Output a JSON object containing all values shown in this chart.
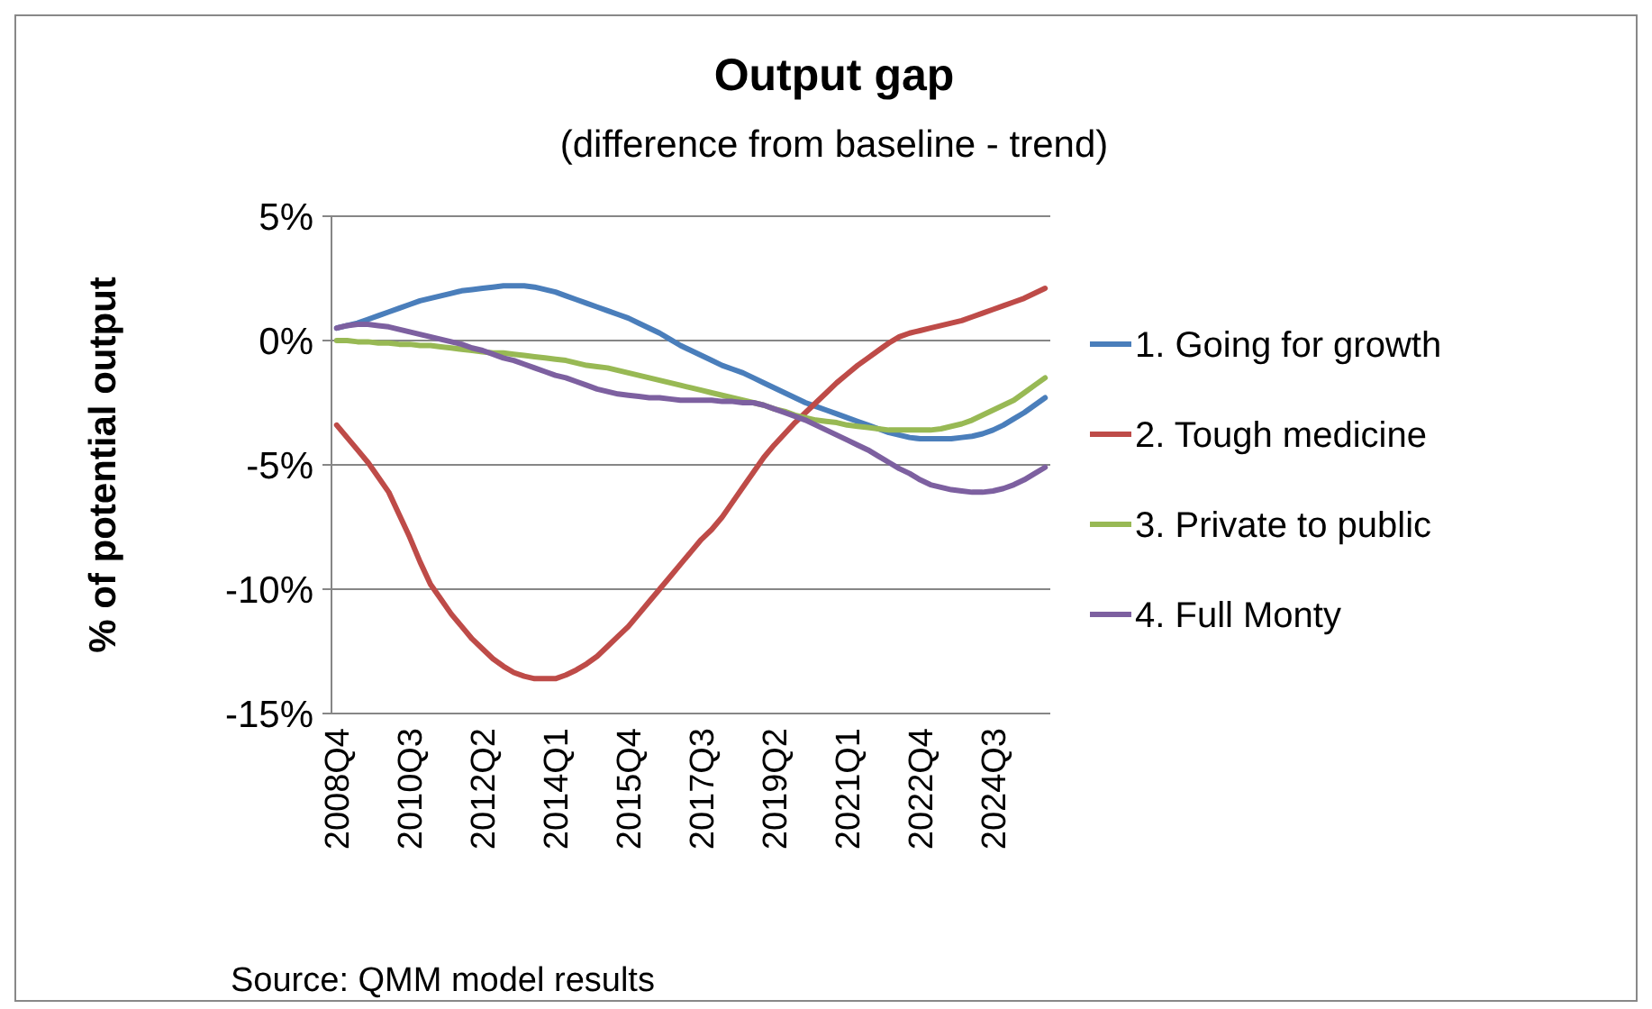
{
  "chart_data": {
    "type": "line",
    "title": "Output gap",
    "subtitle": "(difference from baseline - trend)",
    "ylabel": "% of potential output",
    "annotations": [
      "Source: QMM model results"
    ],
    "categories": [
      "2008Q4",
      null,
      null,
      null,
      null,
      null,
      null,
      "2010Q3",
      null,
      null,
      null,
      null,
      null,
      null,
      "2012Q2",
      null,
      null,
      null,
      null,
      null,
      null,
      "2014Q1",
      null,
      null,
      null,
      null,
      null,
      null,
      "2015Q4",
      null,
      null,
      null,
      null,
      null,
      null,
      "2017Q3",
      null,
      null,
      null,
      null,
      null,
      null,
      "2019Q2",
      null,
      null,
      null,
      null,
      null,
      null,
      "2021Q1",
      null,
      null,
      null,
      null,
      null,
      null,
      "2022Q4",
      null,
      null,
      null,
      null,
      null,
      null,
      "2024Q3",
      null,
      null,
      null,
      null,
      null
    ],
    "ylim": [
      -15,
      5
    ],
    "yticks": [
      {
        "value": 5,
        "label": "5%"
      },
      {
        "value": 0,
        "label": "0%"
      },
      {
        "value": -5,
        "label": "-5%"
      },
      {
        "value": -10,
        "label": "-10%"
      },
      {
        "value": -15,
        "label": "-15%"
      }
    ],
    "grid": "y",
    "legend": "right",
    "marker": "none",
    "series": [
      {
        "name": "1. Going for growth",
        "color": "#4a7ebb",
        "values": [
          0.5,
          0.6,
          0.7,
          0.85,
          1.0,
          1.15,
          1.3,
          1.45,
          1.6,
          1.7,
          1.8,
          1.9,
          2.0,
          2.05,
          2.1,
          2.15,
          2.2,
          2.2,
          2.2,
          2.15,
          2.05,
          1.95,
          1.8,
          1.65,
          1.5,
          1.35,
          1.2,
          1.05,
          0.9,
          0.7,
          0.5,
          0.3,
          0.05,
          -0.2,
          -0.4,
          -0.6,
          -0.8,
          -1.0,
          -1.15,
          -1.3,
          -1.5,
          -1.7,
          -1.9,
          -2.1,
          -2.3,
          -2.5,
          -2.65,
          -2.8,
          -2.95,
          -3.1,
          -3.25,
          -3.4,
          -3.55,
          -3.7,
          -3.8,
          -3.9,
          -3.95,
          -3.95,
          -3.95,
          -3.95,
          -3.9,
          -3.85,
          -3.75,
          -3.6,
          -3.4,
          -3.15,
          -2.9,
          -2.6,
          -2.3
        ]
      },
      {
        "name": "2. Tough medicine",
        "color": "#be4b48",
        "values": [
          -3.4,
          -3.9,
          -4.4,
          -4.9,
          -5.5,
          -6.1,
          -7.0,
          -7.9,
          -8.9,
          -9.8,
          -10.4,
          -11.0,
          -11.5,
          -12.0,
          -12.4,
          -12.8,
          -13.1,
          -13.35,
          -13.5,
          -13.6,
          -13.6,
          -13.6,
          -13.45,
          -13.25,
          -13.0,
          -12.7,
          -12.3,
          -11.9,
          -11.5,
          -11.0,
          -10.5,
          -10.0,
          -9.5,
          -9.0,
          -8.5,
          -8.0,
          -7.6,
          -7.1,
          -6.5,
          -5.9,
          -5.3,
          -4.7,
          -4.2,
          -3.75,
          -3.3,
          -2.9,
          -2.5,
          -2.1,
          -1.7,
          -1.35,
          -1.0,
          -0.7,
          -0.4,
          -0.1,
          0.15,
          0.3,
          0.4,
          0.5,
          0.6,
          0.7,
          0.8,
          0.95,
          1.1,
          1.25,
          1.4,
          1.55,
          1.7,
          1.9,
          2.1
        ]
      },
      {
        "name": "3. Private to public",
        "color": "#98b954",
        "values": [
          0,
          0,
          -0.05,
          -0.05,
          -0.1,
          -0.1,
          -0.15,
          -0.15,
          -0.2,
          -0.2,
          -0.25,
          -0.3,
          -0.35,
          -0.4,
          -0.45,
          -0.5,
          -0.5,
          -0.55,
          -0.6,
          -0.65,
          -0.7,
          -0.75,
          -0.8,
          -0.9,
          -1.0,
          -1.05,
          -1.1,
          -1.2,
          -1.3,
          -1.4,
          -1.5,
          -1.6,
          -1.7,
          -1.8,
          -1.9,
          -2.0,
          -2.1,
          -2.2,
          -2.3,
          -2.4,
          -2.5,
          -2.6,
          -2.75,
          -2.85,
          -3.0,
          -3.1,
          -3.2,
          -3.25,
          -3.3,
          -3.4,
          -3.45,
          -3.5,
          -3.55,
          -3.6,
          -3.6,
          -3.6,
          -3.6,
          -3.6,
          -3.55,
          -3.45,
          -3.35,
          -3.2,
          -3.0,
          -2.8,
          -2.6,
          -2.4,
          -2.1,
          -1.8,
          -1.5
        ]
      },
      {
        "name": "4. Full Monty",
        "color": "#7d60a0",
        "values": [
          0.5,
          0.6,
          0.65,
          0.65,
          0.6,
          0.55,
          0.45,
          0.35,
          0.25,
          0.15,
          0.05,
          -0.05,
          -0.15,
          -0.3,
          -0.4,
          -0.55,
          -0.7,
          -0.8,
          -0.95,
          -1.1,
          -1.25,
          -1.4,
          -1.5,
          -1.65,
          -1.8,
          -1.95,
          -2.05,
          -2.15,
          -2.2,
          -2.25,
          -2.3,
          -2.3,
          -2.35,
          -2.4,
          -2.4,
          -2.4,
          -2.4,
          -2.45,
          -2.45,
          -2.5,
          -2.5,
          -2.6,
          -2.75,
          -2.9,
          -3.05,
          -3.2,
          -3.4,
          -3.6,
          -3.8,
          -4.0,
          -4.2,
          -4.4,
          -4.65,
          -4.9,
          -5.15,
          -5.35,
          -5.6,
          -5.8,
          -5.9,
          -6.0,
          -6.05,
          -6.1,
          -6.1,
          -6.05,
          -5.95,
          -5.8,
          -5.6,
          -5.35,
          -5.1
        ]
      }
    ]
  }
}
